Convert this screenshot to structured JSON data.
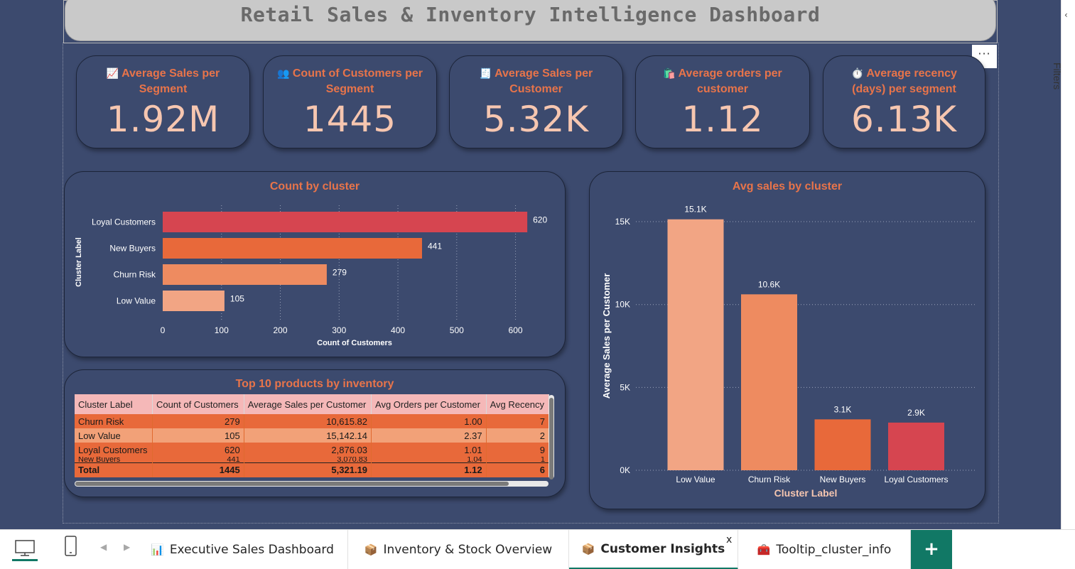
{
  "title": "Retail Sales & Inventory Intelligence Dashboard",
  "more_options": "···",
  "filters": {
    "label": "Filters",
    "chevron": "‹"
  },
  "kpis": [
    {
      "icon": "chart-increasing-icon",
      "glyph": "📈",
      "title": "Average Sales per Segment",
      "value": "1.92M"
    },
    {
      "icon": "people-icon",
      "glyph": "👥",
      "title": "Count of Customers per Segment",
      "value": "1445"
    },
    {
      "icon": "receipt-icon",
      "glyph": "🧾",
      "title": "Average Sales per Customer",
      "value": "5.32K"
    },
    {
      "icon": "shopping-bags-icon",
      "glyph": "🛍️",
      "title": "Average orders per customer",
      "value": "1.12"
    },
    {
      "icon": "stopwatch-icon",
      "glyph": "⏱️",
      "title": "Average recency (days) per segment",
      "value": "6.13K"
    }
  ],
  "chart_data": [
    {
      "type": "bar",
      "orientation": "horizontal",
      "title": "Count by cluster",
      "xlabel": "Count of Customers",
      "ylabel": "Cluster Label",
      "categories": [
        "Loyal Customers",
        "New Buyers",
        "Churn Risk",
        "Low Value"
      ],
      "values": [
        620,
        441,
        279,
        105
      ],
      "data_labels": [
        "620",
        "441",
        "279",
        "105"
      ],
      "colors": [
        "#d64550",
        "#e8693a",
        "#ee8b60",
        "#f2a584"
      ],
      "xlim": [
        0,
        650
      ],
      "xticks": [
        0,
        100,
        200,
        300,
        400,
        500,
        600
      ],
      "grid": "vertical dotted"
    },
    {
      "type": "bar",
      "orientation": "vertical",
      "title": "Avg sales by cluster",
      "xlabel": "Cluster Label",
      "ylabel": "Average Sales per Customer",
      "categories": [
        "Low Value",
        "Churn Risk",
        "New Buyers",
        "Loyal Customers"
      ],
      "values": [
        15142.14,
        10615.82,
        3070.83,
        2876.03
      ],
      "data_labels": [
        "15.1K",
        "10.6K",
        "3.1K",
        "2.9K"
      ],
      "colors": [
        "#f2a584",
        "#ee8b60",
        "#e8693a",
        "#d64550"
      ],
      "ylim": [
        0,
        15000
      ],
      "yticks": [
        0,
        5000,
        10000,
        15000
      ],
      "ytick_labels": [
        "0K",
        "5K",
        "10K",
        "15K"
      ],
      "grid": "horizontal dotted"
    }
  ],
  "table": {
    "title": "Top 10 products by inventory",
    "columns": [
      "Cluster Label",
      "Count of Customers",
      "Average Sales per Customer",
      "Avg Orders per Customer",
      "Avg Recency"
    ],
    "rows": [
      [
        "Churn Risk",
        "279",
        "10,615.82",
        "1.00",
        "7"
      ],
      [
        "Low Value",
        "105",
        "15,142.14",
        "2.37",
        "2"
      ],
      [
        "Loyal Customers",
        "620",
        "2,876.03",
        "1.01",
        "9"
      ],
      [
        "New Buyers",
        "441",
        "3,070.83",
        "1.04",
        "1"
      ]
    ],
    "total": [
      "Total",
      "1445",
      "5,321.19",
      "1.12",
      "6"
    ]
  },
  "tabs": [
    {
      "icon": "bar-chart-icon",
      "glyph": "📊",
      "label": "Executive Sales Dashboard"
    },
    {
      "icon": "package-icon",
      "glyph": "📦",
      "label": "Inventory & Stock Overview"
    },
    {
      "icon": "package-icon",
      "glyph": "📦",
      "label": "Customer Insights"
    },
    {
      "icon": "toolbox-icon",
      "glyph": "🧰",
      "label": "Tooltip_cluster_info"
    }
  ],
  "active_tab": "Customer Insights",
  "tab_close": "x",
  "add_page": "+",
  "nav": {
    "prev": "◀",
    "next": "▶"
  },
  "colors": {
    "canvas": "#3c4a6e",
    "accent": "#e8744a",
    "kpi_value": "#f6c6b0",
    "tab_accent": "#117865"
  }
}
